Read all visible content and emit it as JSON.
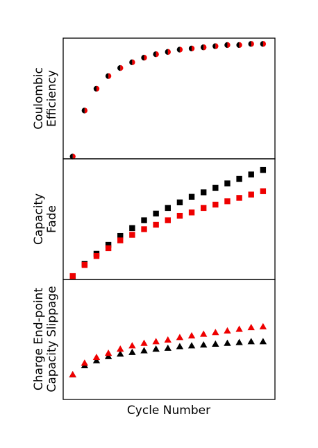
{
  "colors": {
    "series_a": "#000000",
    "series_b": "#ee0000"
  },
  "chart_data": [
    {
      "type": "scatter",
      "ylabel_lines": [
        "Coulombic",
        "Efficiency"
      ],
      "xlabel": "",
      "marker": "split-circle",
      "x": [
        1,
        2,
        3,
        4,
        5,
        6,
        7,
        8,
        9,
        10,
        11,
        12,
        13,
        14,
        15,
        16,
        17
      ],
      "series": [
        {
          "color": "#000000",
          "values": [
            0.0,
            0.4,
            0.59,
            0.7,
            0.77,
            0.82,
            0.86,
            0.89,
            0.91,
            0.93,
            0.94,
            0.95,
            0.96,
            0.97,
            0.97,
            0.98,
            0.98
          ]
        },
        {
          "color": "#ee0000",
          "values": [
            0.0,
            0.4,
            0.59,
            0.7,
            0.77,
            0.82,
            0.86,
            0.89,
            0.91,
            0.93,
            0.94,
            0.95,
            0.96,
            0.97,
            0.97,
            0.98,
            0.98
          ]
        }
      ],
      "ylim": [
        -0.02,
        1.03
      ],
      "xlim": [
        0.2,
        18.0
      ],
      "ticks": false,
      "grid": false
    },
    {
      "type": "scatter",
      "ylabel_lines": [
        "Capacity",
        "Fade"
      ],
      "xlabel": "",
      "marker": "square",
      "x": [
        1,
        2,
        3,
        4,
        5,
        6,
        7,
        8,
        9,
        10,
        11,
        12,
        13,
        14,
        15,
        16,
        17
      ],
      "series": [
        {
          "color": "#000000",
          "values": [
            0.0,
            0.11,
            0.2,
            0.28,
            0.36,
            0.43,
            0.5,
            0.56,
            0.61,
            0.66,
            0.71,
            0.75,
            0.79,
            0.83,
            0.87,
            0.91,
            0.95
          ]
        },
        {
          "color": "#ee0000",
          "values": [
            0.0,
            0.1,
            0.18,
            0.25,
            0.32,
            0.37,
            0.42,
            0.46,
            0.5,
            0.54,
            0.57,
            0.61,
            0.64,
            0.67,
            0.7,
            0.73,
            0.76
          ]
        }
      ],
      "ylim": [
        -0.03,
        1.05
      ],
      "xlim": [
        0.2,
        18.0
      ],
      "ticks": false,
      "grid": false
    },
    {
      "type": "scatter",
      "ylabel_lines": [
        "Charge End-point",
        "Capacity Slippage"
      ],
      "xlabel": "Cycle Number",
      "marker": "triangle",
      "x": [
        1,
        2,
        3,
        4,
        5,
        6,
        7,
        8,
        9,
        10,
        11,
        12,
        13,
        14,
        15,
        16,
        17
      ],
      "series": [
        {
          "color": "#000000",
          "values": [
            0.0,
            0.11,
            0.17,
            0.22,
            0.25,
            0.27,
            0.29,
            0.31,
            0.32,
            0.34,
            0.35,
            0.36,
            0.37,
            0.38,
            0.39,
            0.4,
            0.4
          ]
        },
        {
          "color": "#ee0000",
          "values": [
            0.0,
            0.14,
            0.21,
            0.26,
            0.31,
            0.35,
            0.38,
            0.4,
            0.42,
            0.45,
            0.47,
            0.49,
            0.51,
            0.53,
            0.55,
            0.57,
            0.58
          ]
        }
      ],
      "ylim": [
        -0.3,
        1.15
      ],
      "xlim": [
        0.2,
        18.0
      ],
      "ticks": false,
      "grid": false
    }
  ]
}
